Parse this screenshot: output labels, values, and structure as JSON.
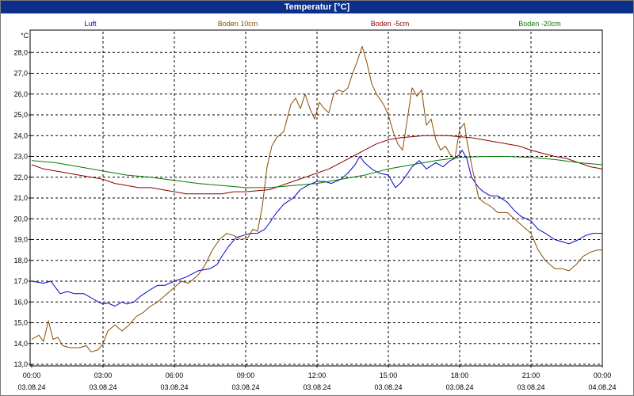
{
  "chart_data": {
    "type": "line",
    "title": "Temperatur [°C]",
    "y_unit_label": "°C",
    "ylim": [
      13.0,
      29.0
    ],
    "y_ticks": [
      "13,0",
      "14,0",
      "15,0",
      "16,0",
      "17,0",
      "18,0",
      "19,0",
      "20,0",
      "21,0",
      "22,0",
      "23,0",
      "24,0",
      "25,0",
      "26,0",
      "27,0",
      "28,0"
    ],
    "x_ticks": [
      {
        "time": "00:00",
        "date": "03.08.24"
      },
      {
        "time": "03:00",
        "date": "03.08.24"
      },
      {
        "time": "06:00",
        "date": "03.08.24"
      },
      {
        "time": "09:00",
        "date": "03.08.24"
      },
      {
        "time": "12:00",
        "date": "03.08.24"
      },
      {
        "time": "15:00",
        "date": "03.08.24"
      },
      {
        "time": "18:00",
        "date": "03.08.24"
      },
      {
        "time": "21:00",
        "date": "03.08.24"
      },
      {
        "time": "00:00",
        "date": "04.08.24"
      }
    ],
    "xlim_hours": [
      0,
      24
    ],
    "grid": true,
    "legend_position": "top",
    "series": [
      {
        "name": "Luft",
        "color": "#0000cc",
        "points": [
          [
            0,
            17.0
          ],
          [
            0.5,
            16.9
          ],
          [
            0.8,
            17.0
          ],
          [
            1.0,
            16.7
          ],
          [
            1.2,
            16.4
          ],
          [
            1.5,
            16.5
          ],
          [
            1.8,
            16.4
          ],
          [
            2.2,
            16.4
          ],
          [
            2.5,
            16.2
          ],
          [
            2.8,
            16.0
          ],
          [
            3.0,
            15.9
          ],
          [
            3.2,
            15.95
          ],
          [
            3.5,
            15.8
          ],
          [
            3.8,
            16.0
          ],
          [
            4.0,
            15.9
          ],
          [
            4.3,
            16.0
          ],
          [
            4.6,
            16.3
          ],
          [
            5.0,
            16.6
          ],
          [
            5.3,
            16.8
          ],
          [
            5.6,
            16.8
          ],
          [
            6.0,
            17.0
          ],
          [
            6.5,
            17.2
          ],
          [
            7.0,
            17.5
          ],
          [
            7.5,
            17.6
          ],
          [
            7.8,
            17.8
          ],
          [
            8.0,
            18.2
          ],
          [
            8.3,
            18.7
          ],
          [
            8.6,
            19.1
          ],
          [
            8.9,
            19.2
          ],
          [
            9.2,
            19.3
          ],
          [
            9.5,
            19.3
          ],
          [
            9.8,
            19.5
          ],
          [
            10.0,
            19.8
          ],
          [
            10.3,
            20.3
          ],
          [
            10.6,
            20.7
          ],
          [
            11.0,
            21.0
          ],
          [
            11.3,
            21.4
          ],
          [
            11.6,
            21.6
          ],
          [
            12.0,
            21.8
          ],
          [
            12.3,
            21.8
          ],
          [
            12.6,
            21.7
          ],
          [
            13.0,
            21.9
          ],
          [
            13.3,
            22.2
          ],
          [
            13.6,
            22.6
          ],
          [
            13.8,
            23.0
          ],
          [
            14.0,
            22.7
          ],
          [
            14.3,
            22.4
          ],
          [
            14.6,
            22.2
          ],
          [
            15.0,
            22.1
          ],
          [
            15.3,
            21.5
          ],
          [
            15.5,
            21.7
          ],
          [
            15.7,
            22.0
          ],
          [
            16.0,
            22.5
          ],
          [
            16.3,
            22.8
          ],
          [
            16.6,
            22.4
          ],
          [
            17.0,
            22.7
          ],
          [
            17.3,
            22.5
          ],
          [
            17.6,
            22.8
          ],
          [
            17.8,
            22.9
          ],
          [
            18.0,
            23.1
          ],
          [
            18.1,
            23.3
          ],
          [
            18.3,
            22.9
          ],
          [
            18.5,
            22.0
          ],
          [
            18.8,
            21.5
          ],
          [
            19.0,
            21.3
          ],
          [
            19.3,
            21.1
          ],
          [
            19.6,
            21.1
          ],
          [
            20.0,
            20.8
          ],
          [
            20.3,
            20.4
          ],
          [
            20.6,
            20.1
          ],
          [
            21.0,
            19.9
          ],
          [
            21.3,
            19.5
          ],
          [
            21.6,
            19.3
          ],
          [
            22.0,
            19.0
          ],
          [
            22.3,
            18.9
          ],
          [
            22.6,
            18.8
          ],
          [
            23.0,
            19.0
          ],
          [
            23.3,
            19.2
          ],
          [
            23.6,
            19.3
          ],
          [
            24.0,
            19.3
          ]
        ]
      },
      {
        "name": "Boden 10cm",
        "color": "#8b4a00",
        "points": [
          [
            0,
            14.2
          ],
          [
            0.3,
            14.4
          ],
          [
            0.5,
            14.1
          ],
          [
            0.7,
            15.1
          ],
          [
            0.9,
            14.2
          ],
          [
            1.1,
            14.3
          ],
          [
            1.3,
            13.9
          ],
          [
            1.6,
            13.8
          ],
          [
            2.0,
            13.8
          ],
          [
            2.3,
            13.9
          ],
          [
            2.5,
            13.6
          ],
          [
            2.8,
            13.7
          ],
          [
            3.0,
            14.0
          ],
          [
            3.2,
            14.6
          ],
          [
            3.5,
            14.9
          ],
          [
            3.8,
            14.6
          ],
          [
            4.1,
            14.9
          ],
          [
            4.4,
            15.3
          ],
          [
            4.7,
            15.5
          ],
          [
            5.0,
            15.8
          ],
          [
            5.3,
            16.0
          ],
          [
            5.6,
            16.3
          ],
          [
            6.0,
            16.7
          ],
          [
            6.3,
            17.0
          ],
          [
            6.6,
            16.9
          ],
          [
            7.0,
            17.3
          ],
          [
            7.3,
            17.8
          ],
          [
            7.6,
            18.5
          ],
          [
            7.9,
            19.0
          ],
          [
            8.2,
            19.3
          ],
          [
            8.5,
            19.2
          ],
          [
            8.8,
            19.0
          ],
          [
            9.1,
            19.1
          ],
          [
            9.3,
            19.5
          ],
          [
            9.5,
            19.4
          ],
          [
            9.7,
            20.6
          ],
          [
            9.9,
            22.5
          ],
          [
            10.1,
            23.5
          ],
          [
            10.3,
            23.9
          ],
          [
            10.6,
            24.2
          ],
          [
            10.9,
            25.5
          ],
          [
            11.1,
            25.8
          ],
          [
            11.3,
            25.3
          ],
          [
            11.5,
            26.0
          ],
          [
            11.7,
            25.3
          ],
          [
            11.9,
            24.8
          ],
          [
            12.1,
            25.6
          ],
          [
            12.3,
            25.3
          ],
          [
            12.5,
            25.1
          ],
          [
            12.7,
            26.0
          ],
          [
            12.9,
            26.2
          ],
          [
            13.1,
            26.1
          ],
          [
            13.3,
            26.3
          ],
          [
            13.5,
            27.0
          ],
          [
            13.7,
            27.6
          ],
          [
            13.9,
            28.3
          ],
          [
            14.1,
            27.5
          ],
          [
            14.3,
            26.5
          ],
          [
            14.5,
            26.0
          ],
          [
            14.8,
            25.5
          ],
          [
            15.0,
            25.0
          ],
          [
            15.2,
            24.2
          ],
          [
            15.4,
            23.6
          ],
          [
            15.6,
            23.3
          ],
          [
            15.8,
            24.8
          ],
          [
            16.0,
            26.3
          ],
          [
            16.2,
            25.9
          ],
          [
            16.4,
            26.2
          ],
          [
            16.6,
            24.5
          ],
          [
            16.8,
            24.8
          ],
          [
            17.0,
            23.8
          ],
          [
            17.2,
            23.3
          ],
          [
            17.4,
            23.5
          ],
          [
            17.6,
            23.1
          ],
          [
            17.8,
            22.9
          ],
          [
            18.0,
            24.3
          ],
          [
            18.2,
            24.6
          ],
          [
            18.3,
            23.8
          ],
          [
            18.5,
            22.6
          ],
          [
            18.8,
            21.0
          ],
          [
            19.0,
            20.8
          ],
          [
            19.3,
            20.6
          ],
          [
            19.6,
            20.3
          ],
          [
            20.0,
            20.3
          ],
          [
            20.3,
            20.0
          ],
          [
            20.6,
            19.7
          ],
          [
            21.0,
            19.3
          ],
          [
            21.3,
            18.5
          ],
          [
            21.6,
            18.0
          ],
          [
            22.0,
            17.6
          ],
          [
            22.3,
            17.6
          ],
          [
            22.6,
            17.5
          ],
          [
            22.9,
            17.8
          ],
          [
            23.2,
            18.2
          ],
          [
            23.5,
            18.4
          ],
          [
            23.8,
            18.5
          ],
          [
            24.0,
            18.5
          ]
        ]
      },
      {
        "name": "Boden -5cm",
        "color": "#8b0000",
        "points": [
          [
            0,
            22.6
          ],
          [
            0.5,
            22.4
          ],
          [
            1.0,
            22.3
          ],
          [
            1.5,
            22.2
          ],
          [
            2.0,
            22.1
          ],
          [
            2.5,
            22.0
          ],
          [
            3.0,
            21.9
          ],
          [
            3.5,
            21.7
          ],
          [
            4.0,
            21.6
          ],
          [
            4.5,
            21.5
          ],
          [
            5.0,
            21.5
          ],
          [
            5.5,
            21.4
          ],
          [
            6.0,
            21.3
          ],
          [
            6.5,
            21.2
          ],
          [
            7.0,
            21.2
          ],
          [
            7.5,
            21.2
          ],
          [
            8.0,
            21.2
          ],
          [
            8.5,
            21.3
          ],
          [
            9.0,
            21.3
          ],
          [
            9.5,
            21.35
          ],
          [
            10.0,
            21.4
          ],
          [
            10.5,
            21.6
          ],
          [
            11.0,
            21.8
          ],
          [
            11.5,
            22.0
          ],
          [
            12.0,
            22.2
          ],
          [
            12.5,
            22.4
          ],
          [
            13.0,
            22.7
          ],
          [
            13.5,
            23.0
          ],
          [
            14.0,
            23.3
          ],
          [
            14.5,
            23.6
          ],
          [
            15.0,
            23.8
          ],
          [
            15.5,
            23.9
          ],
          [
            16.0,
            23.95
          ],
          [
            16.5,
            24.0
          ],
          [
            17.0,
            24.0
          ],
          [
            17.5,
            24.0
          ],
          [
            18.0,
            23.95
          ],
          [
            18.5,
            23.9
          ],
          [
            19.0,
            23.8
          ],
          [
            19.5,
            23.7
          ],
          [
            20.0,
            23.6
          ],
          [
            20.5,
            23.5
          ],
          [
            21.0,
            23.3
          ],
          [
            21.5,
            23.15
          ],
          [
            22.0,
            23.0
          ],
          [
            22.5,
            22.9
          ],
          [
            23.0,
            22.7
          ],
          [
            23.5,
            22.5
          ],
          [
            24.0,
            22.4
          ]
        ]
      },
      {
        "name": "Boden -20cm",
        "color": "#007a00",
        "points": [
          [
            0,
            22.8
          ],
          [
            1.0,
            22.7
          ],
          [
            2.0,
            22.5
          ],
          [
            3.0,
            22.3
          ],
          [
            4.0,
            22.1
          ],
          [
            5.0,
            22.0
          ],
          [
            6.0,
            21.85
          ],
          [
            7.0,
            21.7
          ],
          [
            8.0,
            21.6
          ],
          [
            9.0,
            21.5
          ],
          [
            10.0,
            21.5
          ],
          [
            11.0,
            21.6
          ],
          [
            12.0,
            21.7
          ],
          [
            13.0,
            21.9
          ],
          [
            14.0,
            22.1
          ],
          [
            15.0,
            22.4
          ],
          [
            16.0,
            22.6
          ],
          [
            17.0,
            22.8
          ],
          [
            18.0,
            22.95
          ],
          [
            19.0,
            23.0
          ],
          [
            20.0,
            23.0
          ],
          [
            21.0,
            22.95
          ],
          [
            22.0,
            22.85
          ],
          [
            23.0,
            22.7
          ],
          [
            24.0,
            22.6
          ]
        ]
      }
    ]
  }
}
